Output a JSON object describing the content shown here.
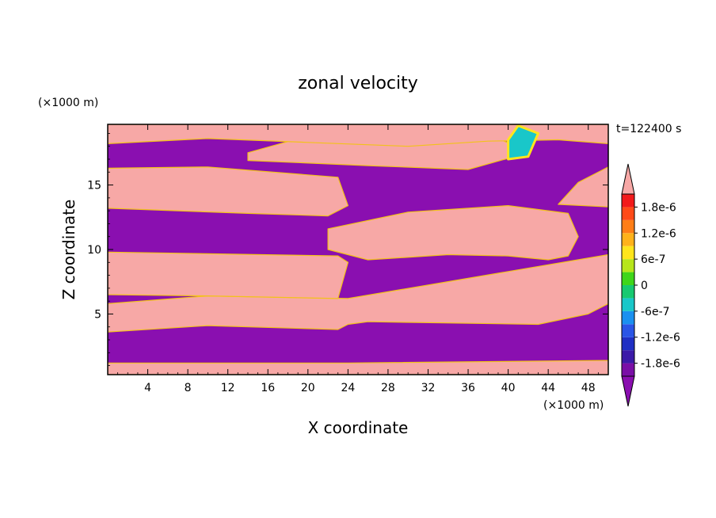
{
  "chart_data": {
    "type": "heatmap",
    "title": "zonal velocity",
    "xlabel": "X coordinate",
    "ylabel": "Z coordinate",
    "x_unit": "(×1000 m)",
    "y_unit": "(×1000 m)",
    "time_label": "t=122400 s",
    "xlim": [
      0,
      50
    ],
    "ylim": [
      0.3,
      19.7
    ],
    "x_ticks": [
      4,
      8,
      12,
      16,
      20,
      24,
      28,
      32,
      36,
      40,
      44,
      48
    ],
    "y_ticks": [
      5,
      10,
      15
    ],
    "colorbar": {
      "range": [
        -2.1e-06,
        2.1e-06
      ],
      "levels": 14,
      "tick_labels": [
        "1.8e-6",
        "1.2e-6",
        "6e-7",
        "0",
        "-6e-7",
        "-1.2e-6",
        "-1.8e-6"
      ],
      "tick_values": [
        1.8e-06,
        1.2e-06,
        6e-07,
        0,
        -6e-07,
        -1.2e-06,
        -1.8e-06
      ],
      "colors": [
        "#7a0fa6",
        "#3c1aa8",
        "#1f2fc4",
        "#2a55e6",
        "#1a90f0",
        "#19c7c9",
        "#17c970",
        "#3fd61a",
        "#b7e61b",
        "#ffe51c",
        "#ffb21a",
        "#ff7e17",
        "#ff4a18",
        "#f21a1a"
      ],
      "over_color": "#f7a8a6",
      "under_color": "#8a0fb0"
    },
    "regions": [
      {
        "sign": "positive",
        "x": [
          0,
          0,
          24,
          50,
          50
        ],
        "z": [
          0.3,
          1.2,
          1.2,
          1.4,
          0.3
        ]
      },
      {
        "sign": "positive",
        "x": [
          0,
          10,
          23,
          24,
          26,
          43,
          48,
          50,
          50,
          24,
          10,
          0
        ],
        "z": [
          3.6,
          4.1,
          3.8,
          4.2,
          4.4,
          4.2,
          5.0,
          5.8,
          9.6,
          6.2,
          6.4,
          5.8
        ]
      },
      {
        "sign": "positive",
        "x": [
          0,
          10,
          23,
          24,
          23,
          0
        ],
        "z": [
          6.5,
          6.4,
          6.2,
          9.0,
          9.5,
          9.8
        ]
      },
      {
        "sign": "positive",
        "x": [
          0,
          14,
          22,
          24,
          23,
          10,
          0
        ],
        "z": [
          13.2,
          12.8,
          12.6,
          13.4,
          15.6,
          16.4,
          16.3
        ]
      },
      {
        "sign": "positive",
        "x": [
          22,
          26,
          34,
          40,
          44,
          46,
          47,
          46,
          40,
          30,
          22
        ],
        "z": [
          10.0,
          9.2,
          9.6,
          9.5,
          9.2,
          9.5,
          11.0,
          12.8,
          13.4,
          12.9,
          11.6
        ]
      },
      {
        "sign": "positive",
        "x": [
          45,
          50,
          50,
          47
        ],
        "z": [
          13.5,
          13.3,
          16.4,
          15.2
        ]
      },
      {
        "sign": "positive",
        "x": [
          14,
          26,
          36,
          42,
          38,
          30,
          20,
          14
        ],
        "z": [
          16.9,
          16.5,
          16.2,
          17.5,
          19.0,
          19.3,
          18.8,
          17.5
        ]
      },
      {
        "sign": "positive",
        "x": [
          0,
          10,
          20,
          30,
          38,
          45,
          50,
          50,
          0
        ],
        "z": [
          18.2,
          18.6,
          18.3,
          18.0,
          18.4,
          18.5,
          18.2,
          19.7,
          19.7
        ]
      },
      {
        "sign": "strong-mixed",
        "x": [
          40,
          42,
          43,
          41,
          40
        ],
        "z": [
          17.0,
          17.2,
          19.0,
          19.6,
          18.5
        ]
      }
    ]
  }
}
